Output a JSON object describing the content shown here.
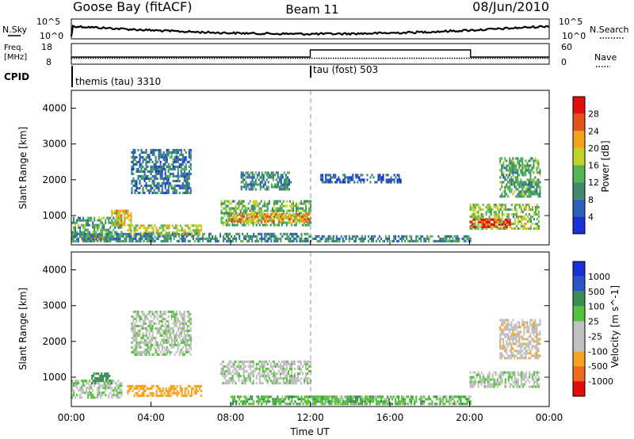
{
  "header": {
    "station": "Goose Bay (fitACF)",
    "beam": "Beam 11",
    "date": "08/Jun/2010"
  },
  "param_panels": {
    "nsky_label": "N.Sky",
    "nsearch_label": "N.Search",
    "noise_ticks": [
      "10^5",
      "10^0"
    ],
    "freq_label_line1": "Freq.",
    "freq_label_line2": "[MHz]",
    "freq_ticks": [
      "18",
      "8"
    ],
    "nave_label": "Nave",
    "nave_ticks": [
      "60",
      "0"
    ],
    "cpid_label": "CPID",
    "cpid_modes": [
      {
        "name": "themis (tau) 3310",
        "start_hour": 0
      },
      {
        "name": "tau (fost) 503",
        "start_hour": 12
      }
    ]
  },
  "time_axis": {
    "label": "Time UT",
    "ticks": [
      "00:00",
      "04:00",
      "08:00",
      "12:00",
      "16:00",
      "20:00",
      "00:00"
    ]
  },
  "colors": {
    "power": [
      "#1a2fd6",
      "#2c5fb8",
      "#3f8a6a",
      "#55b455",
      "#c2d22a",
      "#f2a31a",
      "#e0541a",
      "#e10e0e"
    ],
    "velocity": [
      "#e10e0e",
      "#ee6a1a",
      "#f6a21e",
      "#c0c0c0",
      "#c0c0c0",
      "#55c23a",
      "#3c8c55",
      "#2c55c8",
      "#1a2fd6"
    ],
    "velocity_ground": "#bdbdbd"
  },
  "chart_data": [
    {
      "type": "heatmap",
      "title": "Power",
      "ylabel": "Slant Range [km]",
      "xlabel": "",
      "xlim": [
        0,
        24
      ],
      "ylim": [
        180,
        4500
      ],
      "yticks": [
        1000,
        2000,
        3000,
        4000
      ],
      "colorbar": {
        "label": "Power [dB]",
        "ticks": [
          "4",
          "8",
          "12",
          "16",
          "20",
          "24",
          "28"
        ],
        "range": [
          0,
          32
        ]
      },
      "regions": [
        {
          "t": [
            0.0,
            2.5
          ],
          "r": [
            300,
            900
          ],
          "value": 12
        },
        {
          "t": [
            0.5,
            1.5
          ],
          "r": [
            300,
            420
          ],
          "value": 26
        },
        {
          "t": [
            2.0,
            3.0
          ],
          "r": [
            700,
            1100
          ],
          "value": 20
        },
        {
          "t": [
            2.8,
            6.5
          ],
          "r": [
            420,
            750
          ],
          "value": 18
        },
        {
          "t": [
            3.0,
            6.0
          ],
          "r": [
            1600,
            2800
          ],
          "value": 8
        },
        {
          "t": [
            0.0,
            12.0
          ],
          "r": [
            250,
            450
          ],
          "value": 10
        },
        {
          "t": [
            7.5,
            12.0
          ],
          "r": [
            700,
            1400
          ],
          "value": 14
        },
        {
          "t": [
            8.0,
            12.0
          ],
          "r": [
            800,
            1000
          ],
          "value": 22
        },
        {
          "t": [
            8.5,
            11.0
          ],
          "r": [
            1700,
            2200
          ],
          "value": 10
        },
        {
          "t": [
            12.0,
            20.0
          ],
          "r": [
            250,
            420
          ],
          "value": 10
        },
        {
          "t": [
            12.5,
            16.5
          ],
          "r": [
            1900,
            2100
          ],
          "value": 6
        },
        {
          "t": [
            20.0,
            23.5
          ],
          "r": [
            600,
            1300
          ],
          "value": 16
        },
        {
          "t": [
            20.0,
            22.0
          ],
          "r": [
            650,
            900
          ],
          "value": 28
        },
        {
          "t": [
            21.5,
            23.5
          ],
          "r": [
            1500,
            2600
          ],
          "value": 12
        }
      ]
    },
    {
      "type": "heatmap",
      "title": "Velocity",
      "ylabel": "Slant Range [km]",
      "xlabel": "Time UT",
      "xlim": [
        0,
        24
      ],
      "ylim": [
        180,
        4500
      ],
      "yticks": [
        1000,
        2000,
        3000,
        4000
      ],
      "colorbar": {
        "label": "Velocity [m s^-1]",
        "ticks": [
          "1000",
          "500",
          "100",
          "25",
          "-25",
          "-100",
          "-500",
          "-1000"
        ]
      },
      "regions": [
        {
          "t": [
            0.0,
            2.5
          ],
          "r": [
            400,
            900
          ],
          "value": 0
        },
        {
          "t": [
            1.0,
            2.0
          ],
          "r": [
            800,
            1100
          ],
          "value": 150
        },
        {
          "t": [
            2.8,
            6.5
          ],
          "r": [
            450,
            750
          ],
          "value": -200
        },
        {
          "t": [
            3.0,
            6.0
          ],
          "r": [
            1600,
            2800
          ],
          "value": 0
        },
        {
          "t": [
            7.5,
            12.0
          ],
          "r": [
            800,
            1400
          ],
          "value": 0
        },
        {
          "t": [
            8.0,
            16.0
          ],
          "r": [
            220,
            420
          ],
          "value": 80
        },
        {
          "t": [
            12.0,
            20.0
          ],
          "r": [
            220,
            420
          ],
          "value": 60
        },
        {
          "t": [
            20.0,
            23.5
          ],
          "r": [
            700,
            1100
          ],
          "value": 0
        },
        {
          "t": [
            21.5,
            23.5
          ],
          "r": [
            1500,
            2600
          ],
          "value": -60
        }
      ]
    }
  ]
}
